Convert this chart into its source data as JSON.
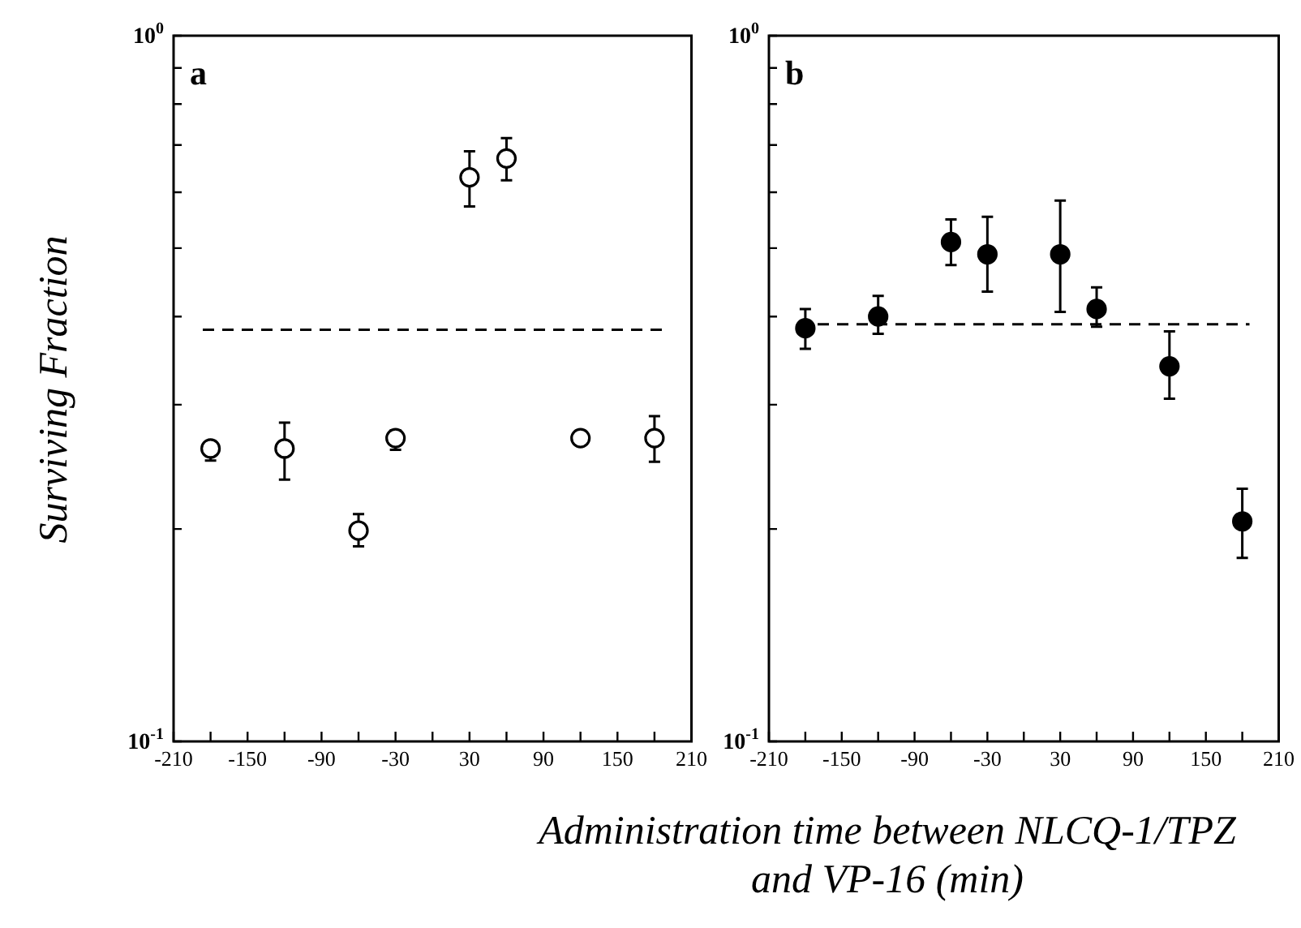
{
  "chart_data": [
    {
      "type": "scatter",
      "title": "a",
      "ylabel": "Surviving Fraction",
      "log": "y",
      "marker": "circle",
      "x": [
        -180,
        -120,
        -60,
        -30,
        30,
        60,
        120,
        180
      ],
      "series": [
        {
          "color": "#ffffff",
          "values": [
            0.26,
            0.26,
            0.199,
            0.269,
            0.63,
            0.67,
            0.269,
            0.269
          ],
          "errors": [
            [
              0.25,
              0.264
            ],
            [
              0.235,
              0.283
            ],
            [
              0.189,
              0.21
            ],
            [
              0.259,
              0.276
            ],
            [
              0.573,
              0.686
            ],
            [
              0.624,
              0.716
            ],
            null,
            [
              0.249,
              0.289
            ]
          ]
        }
      ],
      "ref_lines": [
        {
          "axis": "y",
          "value": 0.383,
          "color": "#000000",
          "line_style": "dashed"
        }
      ],
      "xlim": [
        -210,
        210
      ],
      "xticks": [
        -210,
        {
          "value": -180,
          "label": null
        },
        -150,
        {
          "value": -120,
          "label": null
        },
        -90,
        {
          "value": -60,
          "label": null
        },
        -30,
        {
          "value": 0,
          "label": null
        },
        30,
        {
          "value": 60,
          "label": null
        },
        90,
        {
          "value": 120,
          "label": null
        },
        150,
        {
          "value": 180,
          "label": null
        },
        210
      ],
      "ylim": [
        0.1,
        1
      ],
      "yticks": [
        {
          "value": 0.1,
          "label": "10$^{-1}$"
        },
        {
          "value": 0.2,
          "label": null
        },
        {
          "value": 0.3,
          "label": null
        },
        {
          "value": 0.4,
          "label": null
        },
        {
          "value": 0.5,
          "label": null
        },
        {
          "value": 0.6,
          "label": null
        },
        {
          "value": 0.7,
          "label": null
        },
        {
          "value": 0.8,
          "label": null
        },
        {
          "value": 0.9,
          "label": null
        },
        {
          "value": 1,
          "label": "10$^{0}$"
        }
      ],
      "grid": false,
      "legend": false
    },
    {
      "type": "scatter",
      "title": "b",
      "xlabel": "Administration time between NLCQ-1/TPZ and VP-16 (min)",
      "log": "y",
      "marker": "circle",
      "x": [
        -180,
        -120,
        -60,
        -30,
        30,
        60,
        120,
        180
      ],
      "series": [
        {
          "color": "#000000",
          "values": [
            0.385,
            0.4,
            0.51,
            0.49,
            0.49,
            0.41,
            0.34,
            0.205
          ],
          "errors": [
            [
              0.36,
              0.41
            ],
            [
              0.378,
              0.428
            ],
            [
              0.473,
              0.549
            ],
            [
              0.434,
              0.554
            ],
            [
              0.406,
              0.584
            ],
            [
              0.387,
              0.44
            ],
            [
              0.306,
              0.381
            ],
            [
              0.182,
              0.228
            ]
          ]
        }
      ],
      "ref_lines": [
        {
          "axis": "y",
          "value": 0.39,
          "color": "#000000",
          "line_style": "dashed"
        }
      ],
      "xlim": [
        -210,
        210
      ],
      "xticks": [
        -210,
        {
          "value": -180,
          "label": null
        },
        -150,
        {
          "value": -120,
          "label": null
        },
        -90,
        {
          "value": -60,
          "label": null
        },
        -30,
        {
          "value": 0,
          "label": null
        },
        30,
        {
          "value": 60,
          "label": null
        },
        90,
        {
          "value": 120,
          "label": null
        },
        150,
        {
          "value": 180,
          "label": null
        },
        210
      ],
      "ylim": [
        0.1,
        1
      ],
      "yticks": [
        {
          "value": 0.1,
          "label": "10$^{-1}$"
        },
        {
          "value": 0.2,
          "label": null
        },
        {
          "value": 0.3,
          "label": null
        },
        {
          "value": 0.4,
          "label": null
        },
        {
          "value": 0.5,
          "label": null
        },
        {
          "value": 0.6,
          "label": null
        },
        {
          "value": 0.7,
          "label": null
        },
        {
          "value": 0.8,
          "label": null
        },
        {
          "value": 0.9,
          "label": null
        },
        {
          "value": 1,
          "label": "10$^{0}$"
        }
      ],
      "grid": false,
      "legend": false
    }
  ]
}
